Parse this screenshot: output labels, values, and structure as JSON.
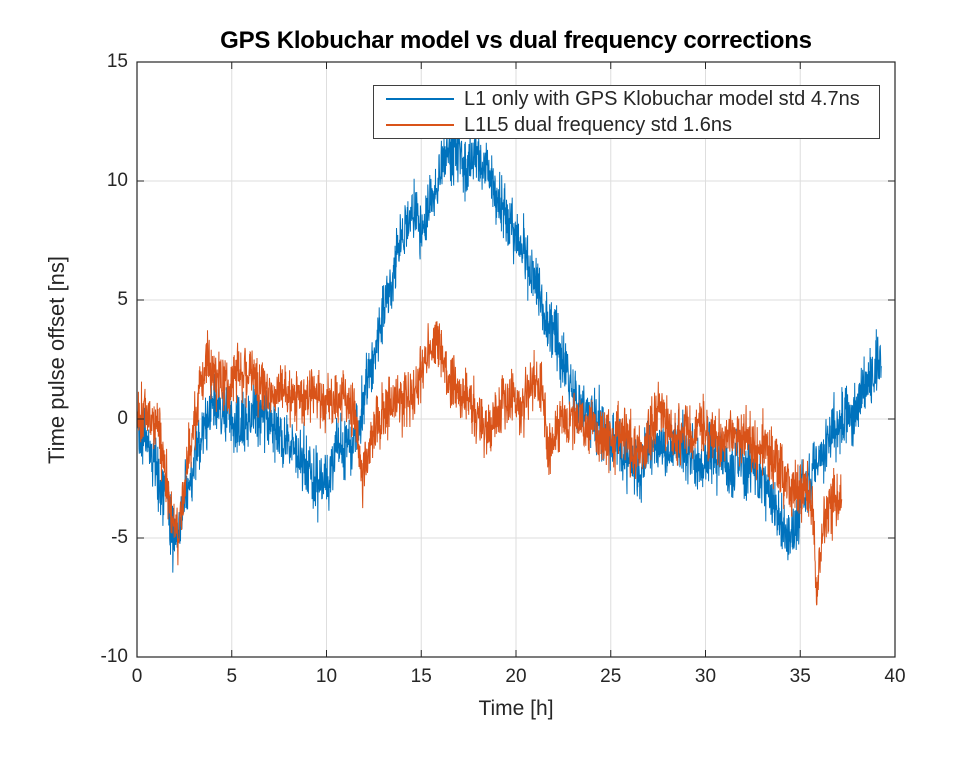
{
  "chart_data": {
    "type": "line",
    "title": "GPS Klobuchar model vs dual frequency corrections",
    "xlabel": "Time [h]",
    "ylabel": "Time pulse offset [ns]",
    "xlim": [
      0,
      40
    ],
    "ylim": [
      -10,
      15
    ],
    "xticks": [
      0,
      5,
      10,
      15,
      20,
      25,
      30,
      35,
      40
    ],
    "yticks": [
      -10,
      -5,
      0,
      5,
      10,
      15
    ],
    "grid": true,
    "legend_position": "top-center-inside",
    "axis_color": "#262626",
    "grid_color": "#dedede",
    "background_color": "#ffffff",
    "series": [
      {
        "name": "L1 only with GPS Klobuchar model std 4.7ns",
        "color": "#0072BD",
        "std_ns": 4.7,
        "t_start": 0,
        "t_end": 39.3,
        "noise_band_ns": 0.9,
        "keypoints": [
          [
            0,
            -0.2
          ],
          [
            0.5,
            -1.0
          ],
          [
            1,
            -2.0
          ],
          [
            1.5,
            -3.2
          ],
          [
            1.9,
            -4.8
          ],
          [
            2.1,
            -5.0
          ],
          [
            2.4,
            -4.3
          ],
          [
            2.8,
            -2.6
          ],
          [
            3.2,
            -1.2
          ],
          [
            3.6,
            0
          ],
          [
            4,
            0.5
          ],
          [
            4.5,
            0.1
          ],
          [
            5,
            0
          ],
          [
            5.5,
            -0.3
          ],
          [
            6,
            0.2
          ],
          [
            6.5,
            0.1
          ],
          [
            7,
            0.1
          ],
          [
            7.5,
            -0.5
          ],
          [
            8,
            -1.1
          ],
          [
            8.5,
            -1.7
          ],
          [
            9,
            -1.9
          ],
          [
            9.4,
            -2.3
          ],
          [
            9.8,
            -2.8
          ],
          [
            10.2,
            -2.2
          ],
          [
            10.6,
            -1.6
          ],
          [
            11,
            -1.0
          ],
          [
            11.4,
            -0.8
          ],
          [
            11.8,
            0.2
          ],
          [
            12.2,
            1.5
          ],
          [
            12.6,
            3.0
          ],
          [
            13,
            4.5
          ],
          [
            13.5,
            6.2
          ],
          [
            14,
            7.6
          ],
          [
            14.4,
            8.2
          ],
          [
            14.8,
            8.4
          ],
          [
            15.1,
            8.1
          ],
          [
            15.5,
            9.2
          ],
          [
            16,
            10.4
          ],
          [
            16.5,
            11.1
          ],
          [
            17,
            11.3
          ],
          [
            17.3,
            10.7
          ],
          [
            17.8,
            11.0
          ],
          [
            18.2,
            10.6
          ],
          [
            18.8,
            9.8
          ],
          [
            19.3,
            9.0
          ],
          [
            19.9,
            7.9
          ],
          [
            20.4,
            6.8
          ],
          [
            20.9,
            5.9
          ],
          [
            21.4,
            4.8
          ],
          [
            21.9,
            3.8
          ],
          [
            22.3,
            2.8
          ],
          [
            22.7,
            1.8
          ],
          [
            23.2,
            0.9
          ],
          [
            23.7,
            0.3
          ],
          [
            24.2,
            -0.3
          ],
          [
            24.7,
            -0.7
          ],
          [
            25.2,
            -1.0
          ],
          [
            25.7,
            -1.3
          ],
          [
            26.1,
            -1.8
          ],
          [
            26.5,
            -2.3
          ],
          [
            27,
            -1.4
          ],
          [
            27.5,
            -0.9
          ],
          [
            27.8,
            -1.0
          ],
          [
            28.3,
            -1.3
          ],
          [
            28.8,
            -1.1
          ],
          [
            29.3,
            -1.5
          ],
          [
            29.8,
            -1.8
          ],
          [
            30.3,
            -1.5
          ],
          [
            30.8,
            -1.6
          ],
          [
            31.3,
            -2.0
          ],
          [
            31.8,
            -1.8
          ],
          [
            32.3,
            -2.1
          ],
          [
            32.8,
            -2.4
          ],
          [
            33.3,
            -2.8
          ],
          [
            33.8,
            -3.6
          ],
          [
            34.2,
            -4.7
          ],
          [
            34.5,
            -5.2
          ],
          [
            34.8,
            -4.4
          ],
          [
            35.1,
            -3.2
          ],
          [
            35.5,
            -2.3
          ],
          [
            35.9,
            -1.8
          ],
          [
            36.3,
            -1.2
          ],
          [
            36.7,
            -0.7
          ],
          [
            37.1,
            -0.2
          ],
          [
            37.5,
            0.2
          ],
          [
            38,
            0.8
          ],
          [
            38.5,
            1.4
          ],
          [
            39,
            2.1
          ],
          [
            39.3,
            2.4
          ]
        ]
      },
      {
        "name": "L1L5 dual frequency std 1.6ns",
        "color": "#D95319",
        "std_ns": 1.6,
        "t_start": 0,
        "t_end": 37.2,
        "noise_band_ns": 0.85,
        "keypoints": [
          [
            0,
            0.4
          ],
          [
            0.4,
            0.5
          ],
          [
            0.8,
            0.1
          ],
          [
            1.2,
            -1.0
          ],
          [
            1.6,
            -2.6
          ],
          [
            1.9,
            -4.4
          ],
          [
            2.1,
            -4.9
          ],
          [
            2.3,
            -3.8
          ],
          [
            2.7,
            -1.8
          ],
          [
            3.1,
            0.2
          ],
          [
            3.5,
            1.6
          ],
          [
            3.8,
            2.3
          ],
          [
            4.1,
            2.0
          ],
          [
            4.5,
            1.7
          ],
          [
            5,
            1.7
          ],
          [
            5.5,
            1.9
          ],
          [
            6,
            1.8
          ],
          [
            6.3,
            2.0
          ],
          [
            6.7,
            1.5
          ],
          [
            7.1,
            1.1
          ],
          [
            7.5,
            1.4
          ],
          [
            8,
            1.2
          ],
          [
            8.5,
            0.9
          ],
          [
            9,
            1.2
          ],
          [
            9.5,
            0.9
          ],
          [
            10,
            0.8
          ],
          [
            10.5,
            1.0
          ],
          [
            11,
            0.7
          ],
          [
            11.4,
            0.5
          ],
          [
            11.7,
            -1.2
          ],
          [
            11.9,
            -2.7
          ],
          [
            12,
            -1.6
          ],
          [
            12.3,
            -0.5
          ],
          [
            12.6,
            -0.1
          ],
          [
            13,
            0.2
          ],
          [
            13.5,
            0.6
          ],
          [
            14,
            0.8
          ],
          [
            14.5,
            1.2
          ],
          [
            15,
            1.9
          ],
          [
            15.4,
            2.7
          ],
          [
            15.8,
            3.4
          ],
          [
            16.1,
            2.7
          ],
          [
            16.5,
            1.9
          ],
          [
            17,
            1.2
          ],
          [
            17.5,
            0.6
          ],
          [
            18,
            0.1
          ],
          [
            18.4,
            -0.5
          ],
          [
            18.7,
            -0.1
          ],
          [
            19.1,
            0.4
          ],
          [
            19.6,
            0.7
          ],
          [
            20,
            0.7
          ],
          [
            20.4,
            0.9
          ],
          [
            20.8,
            1.5
          ],
          [
            21.1,
            1.9
          ],
          [
            21.4,
            0.9
          ],
          [
            21.7,
            -1.6
          ],
          [
            21.8,
            -1.2
          ],
          [
            22.1,
            -0.2
          ],
          [
            22.5,
            0.2
          ],
          [
            23,
            -0.2
          ],
          [
            23.5,
            -0.4
          ],
          [
            24,
            -0.3
          ],
          [
            24.5,
            -0.6
          ],
          [
            25,
            -0.8
          ],
          [
            25.5,
            -0.6
          ],
          [
            26,
            -1.0
          ],
          [
            26.5,
            -1.5
          ],
          [
            27,
            -0.7
          ],
          [
            27.6,
            0.2
          ],
          [
            28.2,
            -0.5
          ],
          [
            28.7,
            -0.3
          ],
          [
            29.2,
            -0.5
          ],
          [
            29.7,
            -0.4
          ],
          [
            30.2,
            -0.6
          ],
          [
            30.7,
            -0.4
          ],
          [
            31.2,
            -0.7
          ],
          [
            31.7,
            -0.9
          ],
          [
            32.2,
            -0.7
          ],
          [
            32.7,
            -1.0
          ],
          [
            33.2,
            -1.3
          ],
          [
            33.7,
            -1.9
          ],
          [
            34.1,
            -2.5
          ],
          [
            34.5,
            -2.9
          ],
          [
            34.9,
            -2.6
          ],
          [
            35.3,
            -2.9
          ],
          [
            35.6,
            -3.4
          ],
          [
            35.8,
            -6.5
          ],
          [
            35.9,
            -7.4
          ],
          [
            36.1,
            -5.8
          ],
          [
            36.2,
            -4.5
          ],
          [
            36.5,
            -3.7
          ],
          [
            36.8,
            -3.3
          ],
          [
            37,
            -3.3
          ],
          [
            37.2,
            -3.4
          ]
        ]
      }
    ]
  }
}
